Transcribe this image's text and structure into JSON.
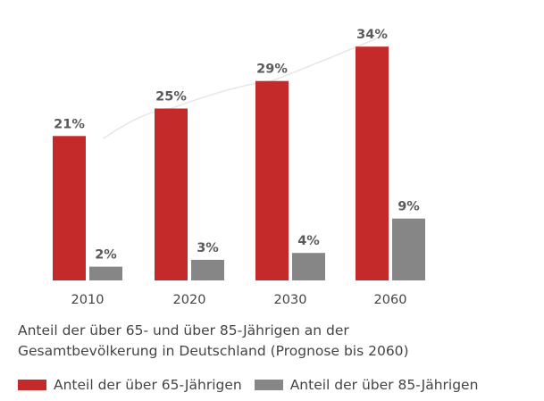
{
  "chart_data": {
    "type": "bar",
    "categories": [
      "2010",
      "2020",
      "2030",
      "2060"
    ],
    "series": [
      {
        "name": "Anteil der über 65-Jährigen",
        "values": [
          21,
          25,
          29,
          34
        ],
        "labels": [
          "21%",
          "25%",
          "29%",
          "34%"
        ],
        "color": "#c42a29"
      },
      {
        "name": "Anteil der über 85-Jährigen",
        "values": [
          2,
          3,
          4,
          9
        ],
        "labels": [
          "2%",
          "3%",
          "4%",
          "9%"
        ],
        "color": "#868686"
      }
    ],
    "ylim": [
      0,
      40
    ],
    "grid": false,
    "legend": "bottom-left",
    "trend_line_color": "#e6e6e6"
  },
  "caption": {
    "line1": "Anteil der über 65- und über 85-Jährigen an der",
    "line2": "Gesamtbevölkerung in Deutschland (Prognose bis 2060)"
  },
  "legend": {
    "items": [
      {
        "label": "Anteil der über 65-Jährigen",
        "color": "#c42a29"
      },
      {
        "label": "Anteil der über 85-Jährigen",
        "color": "#868686"
      }
    ]
  }
}
